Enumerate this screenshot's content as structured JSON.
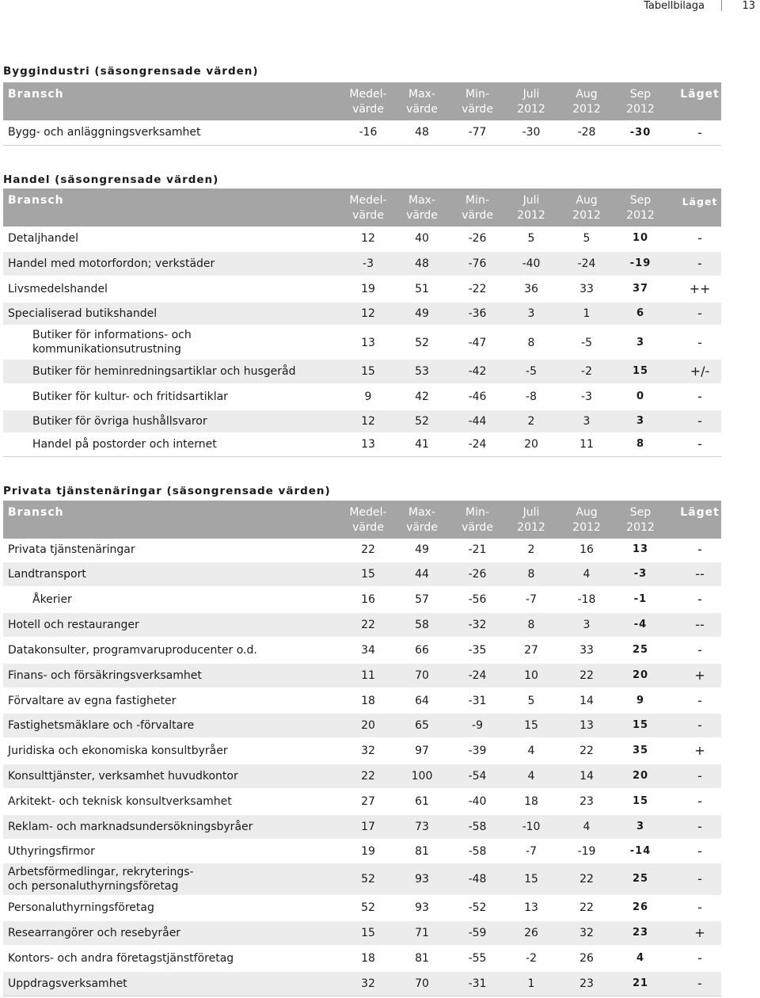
{
  "page_header": {
    "title": "Tabellbilaga",
    "page": "13"
  },
  "columns": {
    "bransch": "Bransch",
    "medel": [
      "Medel-",
      "värde"
    ],
    "max": [
      "Max-",
      "värde"
    ],
    "min": [
      "Min-",
      "värde"
    ],
    "juli": [
      "Juli",
      "2012"
    ],
    "aug": [
      "Aug",
      "2012"
    ],
    "sep": [
      "Sep",
      "2012"
    ],
    "laget": "Läget"
  },
  "sections": [
    {
      "title": "Byggindustri (säsongrensade värden)",
      "rows": [
        {
          "name": "Bygg- och anläggningsverksamhet",
          "medel": "-16",
          "max": "48",
          "min": "-77",
          "juli": "-30",
          "aug": "-28",
          "sep": "-30",
          "laget": "-"
        }
      ]
    },
    {
      "title": "Handel (säsongrensade värden)",
      "rows": [
        {
          "name": "Detaljhandel",
          "medel": "12",
          "max": "40",
          "min": "-26",
          "juli": "5",
          "aug": "5",
          "sep": "10",
          "laget": "-"
        },
        {
          "name": "Handel med motorfordon; verkstäder",
          "medel": "-3",
          "max": "48",
          "min": "-76",
          "juli": "-40",
          "aug": "-24",
          "sep": "-19",
          "laget": "-"
        },
        {
          "name": "Livsmedelshandel",
          "medel": "19",
          "max": "51",
          "min": "-22",
          "juli": "36",
          "aug": "33",
          "sep": "37",
          "laget": "++"
        },
        {
          "name": "Specialiserad butikshandel",
          "medel": "12",
          "max": "49",
          "min": "-36",
          "juli": "3",
          "aug": "1",
          "sep": "6",
          "laget": "-"
        },
        {
          "name": "Butiker för informations- och kommunikationsutrustning",
          "medel": "13",
          "max": "52",
          "min": "-47",
          "juli": "8",
          "aug": "-5",
          "sep": "3",
          "laget": "-"
        },
        {
          "name": "Butiker för heminredningsartiklar och husgeråd",
          "medel": "15",
          "max": "53",
          "min": "-42",
          "juli": "-5",
          "aug": "-2",
          "sep": "15",
          "laget": "+/-"
        },
        {
          "name": "Butiker för kultur- och fritidsartiklar",
          "medel": "9",
          "max": "42",
          "min": "-46",
          "juli": "-8",
          "aug": "-3",
          "sep": "0",
          "laget": "-"
        },
        {
          "name": "Butiker för övriga hushållsvaror",
          "medel": "12",
          "max": "52",
          "min": "-44",
          "juli": "2",
          "aug": "3",
          "sep": "3",
          "laget": "-"
        },
        {
          "name": "Handel på postorder och internet",
          "medel": "13",
          "max": "41",
          "min": "-24",
          "juli": "20",
          "aug": "11",
          "sep": "8",
          "laget": "-"
        }
      ]
    },
    {
      "title": "Privata tjänstenäringar (säsongrensade värden)",
      "rows": [
        {
          "name": "Privata tjänstenäringar",
          "medel": "22",
          "max": "49",
          "min": "-21",
          "juli": "2",
          "aug": "16",
          "sep": "13",
          "laget": "-"
        },
        {
          "name": "Landtransport",
          "medel": "15",
          "max": "44",
          "min": "-26",
          "juli": "8",
          "aug": "4",
          "sep": "-3",
          "laget": "--"
        },
        {
          "name": "Åkerier",
          "medel": "16",
          "max": "57",
          "min": "-56",
          "juli": "-7",
          "aug": "-18",
          "sep": "-1",
          "laget": "-"
        },
        {
          "name": "Hotell och restauranger",
          "medel": "22",
          "max": "58",
          "min": "-32",
          "juli": "8",
          "aug": "3",
          "sep": "-4",
          "laget": "--"
        },
        {
          "name": "Datakonsulter, programvaruproducenter o.d.",
          "medel": "34",
          "max": "66",
          "min": "-35",
          "juli": "27",
          "aug": "33",
          "sep": "25",
          "laget": "-"
        },
        {
          "name": "Finans- och försäkringsverksamhet",
          "medel": "11",
          "max": "70",
          "min": "-24",
          "juli": "10",
          "aug": "22",
          "sep": "20",
          "laget": "+"
        },
        {
          "name": "Förvaltare av egna fastigheter",
          "medel": "18",
          "max": "64",
          "min": "-31",
          "juli": "5",
          "aug": "14",
          "sep": "9",
          "laget": "-"
        },
        {
          "name": "Fastighetsmäklare och -förvaltare",
          "medel": "20",
          "max": "65",
          "min": "-9",
          "juli": "15",
          "aug": "13",
          "sep": "15",
          "laget": "-"
        },
        {
          "name": "Juridiska och ekonomiska konsultbyråer",
          "medel": "32",
          "max": "97",
          "min": "-39",
          "juli": "4",
          "aug": "22",
          "sep": "35",
          "laget": "+"
        },
        {
          "name": "Konsulttjänster, verksamhet huvudkontor",
          "medel": "22",
          "max": "100",
          "min": "-54",
          "juli": "4",
          "aug": "14",
          "sep": "20",
          "laget": "-"
        },
        {
          "name": "Arkitekt- och teknisk konsultverksamhet",
          "medel": "27",
          "max": "61",
          "min": "-40",
          "juli": "18",
          "aug": "23",
          "sep": "15",
          "laget": "-"
        },
        {
          "name": "Reklam- och marknadsundersökningsbyråer",
          "medel": "17",
          "max": "73",
          "min": "-58",
          "juli": "-10",
          "aug": "4",
          "sep": "3",
          "laget": "-"
        },
        {
          "name": "Uthyringsfirmor",
          "medel": "19",
          "max": "81",
          "min": "-58",
          "juli": "-7",
          "aug": "-19",
          "sep": "-14",
          "laget": "-"
        },
        {
          "name": "Arbetsförmedlingar, rekryterings- och personaluthyrningsföretag",
          "medel": "52",
          "max": "93",
          "min": "-48",
          "juli": "15",
          "aug": "22",
          "sep": "25",
          "laget": "-"
        },
        {
          "name": "Personaluthyrningsföretag",
          "medel": "52",
          "max": "93",
          "min": "-52",
          "juli": "13",
          "aug": "22",
          "sep": "26",
          "laget": "-"
        },
        {
          "name": "Researrangörer och resebyråer",
          "medel": "15",
          "max": "71",
          "min": "-59",
          "juli": "26",
          "aug": "32",
          "sep": "23",
          "laget": "+"
        },
        {
          "name": "Kontors- och andra företagstjänstföretag",
          "medel": "18",
          "max": "81",
          "min": "-55",
          "juli": "-2",
          "aug": "26",
          "sep": "4",
          "laget": "-"
        },
        {
          "name": "Uppdragsverksamhet",
          "medel": "32",
          "max": "70",
          "min": "-31",
          "juli": "1",
          "aug": "23",
          "sep": "21",
          "laget": "-"
        }
      ]
    }
  ]
}
